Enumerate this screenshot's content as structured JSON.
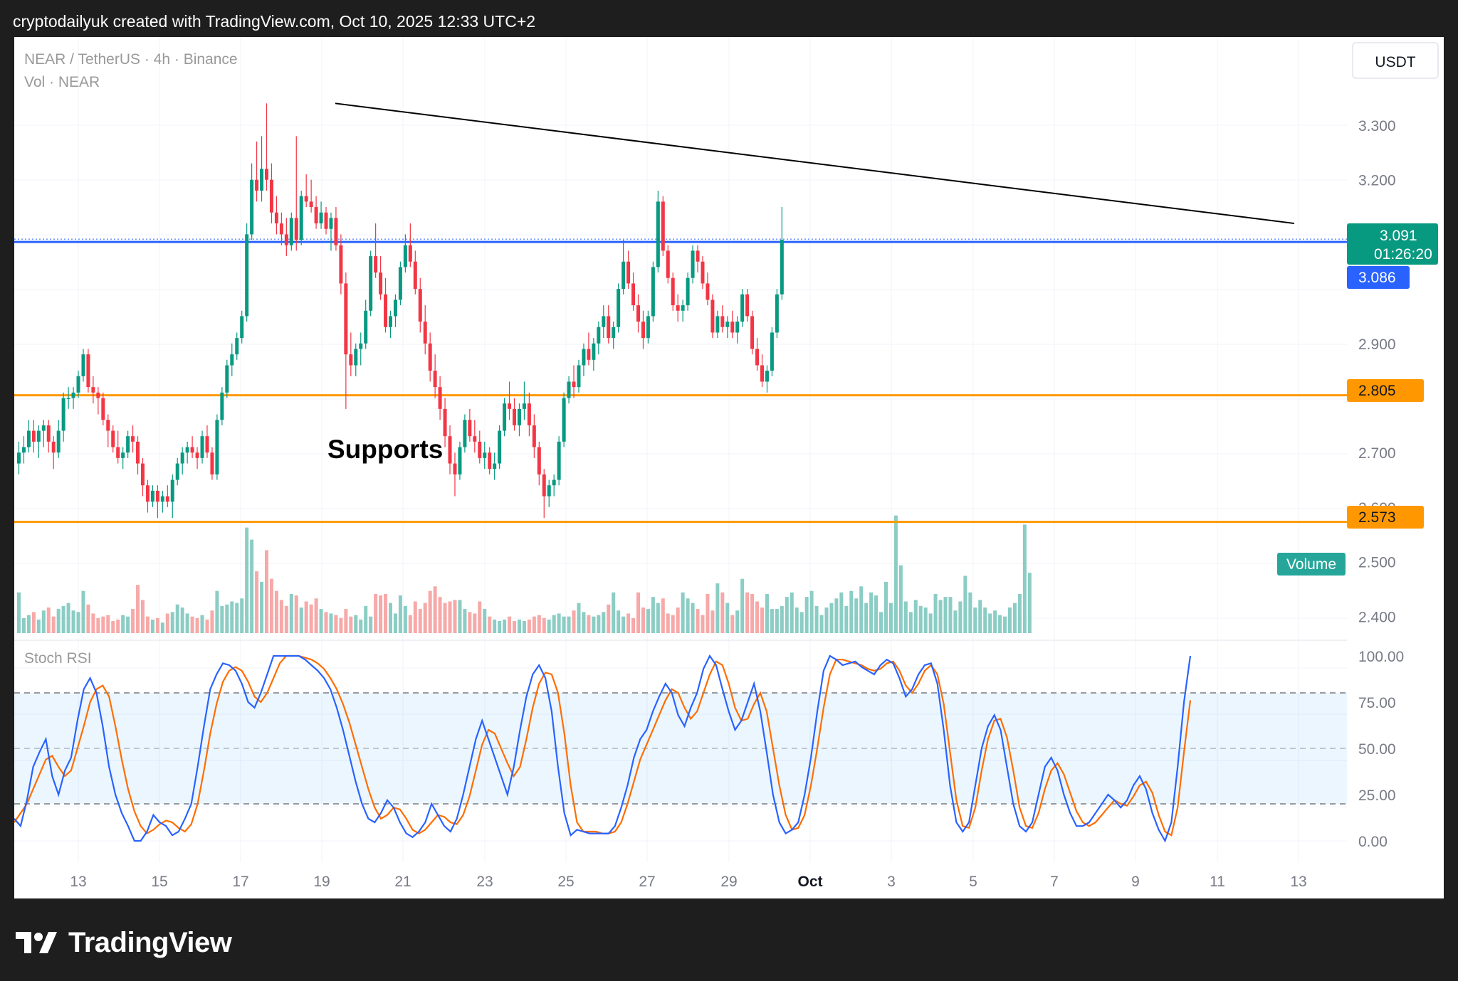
{
  "header": {
    "attribution": "cryptodailyuk created with TradingView.com, Oct 10, 2025 12:33 UTC+2"
  },
  "footer": {
    "brand": "TradingView"
  },
  "chart_data": {
    "type": "candlestick",
    "title": "NEAR / TetherUS · 4h · Binance",
    "volume_legend": "Vol · NEAR",
    "currency": "USDT",
    "annotation": "Supports",
    "price_axis": {
      "ticks": [
        "3.300",
        "3.200",
        "2.900",
        "2.700",
        "2.600",
        "2.500",
        "2.400"
      ],
      "range": [
        2.31,
        3.47
      ]
    },
    "x_ticks": [
      "13",
      "15",
      "17",
      "19",
      "21",
      "23",
      "25",
      "27",
      "29",
      "Oct",
      "3",
      "5",
      "7",
      "9",
      "11",
      "13"
    ],
    "price_labels": {
      "last": {
        "value": "3.091",
        "countdown": "01:26:20",
        "color": "#089981"
      },
      "line": {
        "value": "3.086",
        "color": "#2962ff"
      },
      "support_1": {
        "value": "2.805",
        "color": "#ff9800"
      },
      "support_2": {
        "value": "2.573",
        "color": "#ff9800"
      },
      "volume_tag": {
        "value": "Volume",
        "color": "#26a69a"
      }
    },
    "levels": {
      "resistance_blue": 3.086,
      "support_1": 2.805,
      "support_2": 2.573
    },
    "trendline": {
      "from": {
        "x": 19.4,
        "y": 3.34
      },
      "to": {
        "x": 12.8,
        "y": 3.12
      }
    },
    "candles_ohlc": [
      [
        2.68,
        2.72,
        2.66,
        2.7
      ],
      [
        2.7,
        2.73,
        2.68,
        2.71
      ],
      [
        2.71,
        2.76,
        2.7,
        2.74
      ],
      [
        2.74,
        2.76,
        2.7,
        2.72
      ],
      [
        2.72,
        2.75,
        2.69,
        2.74
      ],
      [
        2.74,
        2.76,
        2.71,
        2.75
      ],
      [
        2.75,
        2.76,
        2.7,
        2.72
      ],
      [
        2.72,
        2.73,
        2.67,
        2.7
      ],
      [
        2.7,
        2.76,
        2.69,
        2.74
      ],
      [
        2.74,
        2.81,
        2.72,
        2.8
      ],
      [
        2.8,
        2.82,
        2.78,
        2.8
      ],
      [
        2.8,
        2.82,
        2.78,
        2.81
      ],
      [
        2.81,
        2.85,
        2.8,
        2.84
      ],
      [
        2.84,
        2.89,
        2.83,
        2.88
      ],
      [
        2.88,
        2.89,
        2.81,
        2.82
      ],
      [
        2.82,
        2.84,
        2.79,
        2.81
      ],
      [
        2.81,
        2.82,
        2.77,
        2.8
      ],
      [
        2.8,
        2.81,
        2.75,
        2.76
      ],
      [
        2.76,
        2.77,
        2.71,
        2.74
      ],
      [
        2.74,
        2.75,
        2.7,
        2.71
      ],
      [
        2.71,
        2.74,
        2.68,
        2.69
      ],
      [
        2.69,
        2.71,
        2.67,
        2.7
      ],
      [
        2.7,
        2.74,
        2.69,
        2.73
      ],
      [
        2.73,
        2.75,
        2.7,
        2.72
      ],
      [
        2.72,
        2.73,
        2.66,
        2.68
      ],
      [
        2.68,
        2.69,
        2.62,
        2.64
      ],
      [
        2.64,
        2.65,
        2.59,
        2.61
      ],
      [
        2.61,
        2.64,
        2.6,
        2.63
      ],
      [
        2.63,
        2.64,
        2.58,
        2.61
      ],
      [
        2.61,
        2.63,
        2.59,
        2.62
      ],
      [
        2.62,
        2.64,
        2.6,
        2.61
      ],
      [
        2.61,
        2.66,
        2.58,
        2.65
      ],
      [
        2.65,
        2.69,
        2.64,
        2.68
      ],
      [
        2.68,
        2.71,
        2.66,
        2.7
      ],
      [
        2.7,
        2.72,
        2.68,
        2.71
      ],
      [
        2.71,
        2.73,
        2.69,
        2.7
      ],
      [
        2.7,
        2.71,
        2.67,
        2.69
      ],
      [
        2.69,
        2.74,
        2.68,
        2.73
      ],
      [
        2.73,
        2.75,
        2.69,
        2.7
      ],
      [
        2.7,
        2.71,
        2.65,
        2.66
      ],
      [
        2.66,
        2.77,
        2.65,
        2.76
      ],
      [
        2.76,
        2.82,
        2.75,
        2.81
      ],
      [
        2.81,
        2.87,
        2.8,
        2.86
      ],
      [
        2.86,
        2.9,
        2.84,
        2.88
      ],
      [
        2.88,
        2.92,
        2.87,
        2.91
      ],
      [
        2.91,
        2.96,
        2.9,
        2.95
      ],
      [
        2.95,
        3.12,
        2.94,
        3.1
      ],
      [
        3.1,
        3.23,
        3.09,
        3.2
      ],
      [
        3.2,
        3.27,
        3.16,
        3.18
      ],
      [
        3.18,
        3.28,
        3.16,
        3.22
      ],
      [
        3.22,
        3.34,
        3.18,
        3.2
      ],
      [
        3.2,
        3.23,
        3.12,
        3.14
      ],
      [
        3.14,
        3.17,
        3.1,
        3.12
      ],
      [
        3.12,
        3.14,
        3.08,
        3.1
      ],
      [
        3.1,
        3.13,
        3.06,
        3.08
      ],
      [
        3.08,
        3.14,
        3.07,
        3.13
      ],
      [
        3.13,
        3.28,
        3.07,
        3.09
      ],
      [
        3.09,
        3.18,
        3.08,
        3.17
      ],
      [
        3.17,
        3.21,
        3.15,
        3.16
      ],
      [
        3.16,
        3.2,
        3.14,
        3.15
      ],
      [
        3.15,
        3.17,
        3.11,
        3.12
      ],
      [
        3.12,
        3.16,
        3.11,
        3.14
      ],
      [
        3.14,
        3.15,
        3.1,
        3.11
      ],
      [
        3.11,
        3.14,
        3.07,
        3.13
      ],
      [
        3.13,
        3.15,
        3.07,
        3.08
      ],
      [
        3.08,
        3.1,
        2.99,
        3.01
      ],
      [
        3.01,
        3.03,
        2.78,
        2.88
      ],
      [
        2.88,
        2.92,
        2.84,
        2.86
      ],
      [
        2.86,
        2.9,
        2.84,
        2.89
      ],
      [
        2.89,
        2.92,
        2.86,
        2.9
      ],
      [
        2.9,
        2.98,
        2.89,
        2.96
      ],
      [
        2.96,
        3.07,
        2.95,
        3.06
      ],
      [
        3.06,
        3.12,
        3.02,
        3.03
      ],
      [
        3.03,
        3.06,
        2.98,
        2.99
      ],
      [
        2.99,
        3.02,
        2.92,
        2.93
      ],
      [
        2.93,
        2.96,
        2.91,
        2.95
      ],
      [
        2.95,
        2.99,
        2.93,
        2.98
      ],
      [
        2.98,
        3.05,
        2.97,
        3.04
      ],
      [
        3.04,
        3.1,
        3.03,
        3.08
      ],
      [
        3.08,
        3.12,
        3.04,
        3.05
      ],
      [
        3.05,
        3.07,
        2.99,
        3.0
      ],
      [
        3.0,
        3.02,
        2.92,
        2.94
      ],
      [
        2.94,
        2.97,
        2.88,
        2.9
      ],
      [
        2.9,
        2.92,
        2.83,
        2.85
      ],
      [
        2.85,
        2.88,
        2.8,
        2.82
      ],
      [
        2.82,
        2.84,
        2.76,
        2.78
      ],
      [
        2.78,
        2.8,
        2.71,
        2.73
      ],
      [
        2.73,
        2.75,
        2.66,
        2.68
      ],
      [
        2.68,
        2.7,
        2.62,
        2.66
      ],
      [
        2.66,
        2.72,
        2.65,
        2.71
      ],
      [
        2.71,
        2.77,
        2.7,
        2.76
      ],
      [
        2.76,
        2.78,
        2.72,
        2.73
      ],
      [
        2.73,
        2.76,
        2.7,
        2.72
      ],
      [
        2.72,
        2.74,
        2.68,
        2.69
      ],
      [
        2.69,
        2.72,
        2.67,
        2.7
      ],
      [
        2.7,
        2.71,
        2.66,
        2.67
      ],
      [
        2.67,
        2.7,
        2.65,
        2.68
      ],
      [
        2.68,
        2.75,
        2.67,
        2.74
      ],
      [
        2.74,
        2.8,
        2.73,
        2.79
      ],
      [
        2.79,
        2.83,
        2.76,
        2.78
      ],
      [
        2.78,
        2.8,
        2.74,
        2.75
      ],
      [
        2.75,
        2.79,
        2.73,
        2.78
      ],
      [
        2.78,
        2.83,
        2.76,
        2.79
      ],
      [
        2.79,
        2.81,
        2.73,
        2.75
      ],
      [
        2.75,
        2.77,
        2.69,
        2.71
      ],
      [
        2.71,
        2.72,
        2.64,
        2.66
      ],
      [
        2.66,
        2.67,
        2.58,
        2.62
      ],
      [
        2.62,
        2.65,
        2.6,
        2.64
      ],
      [
        2.64,
        2.66,
        2.62,
        2.65
      ],
      [
        2.65,
        2.73,
        2.64,
        2.72
      ],
      [
        2.72,
        2.81,
        2.71,
        2.8
      ],
      [
        2.8,
        2.84,
        2.79,
        2.83
      ],
      [
        2.83,
        2.86,
        2.8,
        2.82
      ],
      [
        2.82,
        2.87,
        2.81,
        2.86
      ],
      [
        2.86,
        2.9,
        2.84,
        2.89
      ],
      [
        2.89,
        2.92,
        2.86,
        2.87
      ],
      [
        2.87,
        2.91,
        2.85,
        2.9
      ],
      [
        2.9,
        2.94,
        2.88,
        2.93
      ],
      [
        2.93,
        2.97,
        2.91,
        2.95
      ],
      [
        2.95,
        2.97,
        2.9,
        2.91
      ],
      [
        2.91,
        2.94,
        2.89,
        2.93
      ],
      [
        2.93,
        3.01,
        2.92,
        3.0
      ],
      [
        3.0,
        3.09,
        2.99,
        3.05
      ],
      [
        3.05,
        3.07,
        3.0,
        3.01
      ],
      [
        3.01,
        3.03,
        2.96,
        2.97
      ],
      [
        2.97,
        2.99,
        2.92,
        2.94
      ],
      [
        2.94,
        2.96,
        2.89,
        2.91
      ],
      [
        2.91,
        2.96,
        2.9,
        2.95
      ],
      [
        2.95,
        3.05,
        2.94,
        3.04
      ],
      [
        3.04,
        3.18,
        3.03,
        3.16
      ],
      [
        3.16,
        3.17,
        3.06,
        3.07
      ],
      [
        3.07,
        3.08,
        3.01,
        3.02
      ],
      [
        3.02,
        3.03,
        2.96,
        2.97
      ],
      [
        2.97,
        2.99,
        2.94,
        2.96
      ],
      [
        2.96,
        2.98,
        2.94,
        2.97
      ],
      [
        2.97,
        3.03,
        2.96,
        3.02
      ],
      [
        3.02,
        3.08,
        3.01,
        3.07
      ],
      [
        3.07,
        3.08,
        3.03,
        3.05
      ],
      [
        3.05,
        3.06,
        3.0,
        3.01
      ],
      [
        3.01,
        3.03,
        2.97,
        2.98
      ],
      [
        2.98,
        2.99,
        2.91,
        2.92
      ],
      [
        2.92,
        2.96,
        2.91,
        2.95
      ],
      [
        2.95,
        2.97,
        2.92,
        2.93
      ],
      [
        2.93,
        2.95,
        2.91,
        2.94
      ],
      [
        2.94,
        2.96,
        2.91,
        2.92
      ],
      [
        2.92,
        2.95,
        2.9,
        2.94
      ],
      [
        2.94,
        3.0,
        2.93,
        2.99
      ],
      [
        2.99,
        3.0,
        2.94,
        2.95
      ],
      [
        2.95,
        2.96,
        2.88,
        2.89
      ],
      [
        2.89,
        2.91,
        2.85,
        2.86
      ],
      [
        2.86,
        2.88,
        2.82,
        2.83
      ],
      [
        2.83,
        2.86,
        2.81,
        2.85
      ],
      [
        2.85,
        2.93,
        2.84,
        2.92
      ],
      [
        2.92,
        3.0,
        2.91,
        2.99
      ],
      [
        2.99,
        3.15,
        2.98,
        3.09
      ]
    ],
    "volume_levels": [
      0.27,
      0.1,
      0.12,
      0.14,
      0.09,
      0.15,
      0.17,
      0.11,
      0.16,
      0.18,
      0.2,
      0.15,
      0.14,
      0.28,
      0.19,
      0.13,
      0.1,
      0.11,
      0.12,
      0.08,
      0.09,
      0.12,
      0.11,
      0.16,
      0.32,
      0.22,
      0.11,
      0.09,
      0.1,
      0.07,
      0.13,
      0.14,
      0.19,
      0.17,
      0.13,
      0.11,
      0.1,
      0.12,
      0.09,
      0.15,
      0.28,
      0.18,
      0.19,
      0.21,
      0.2,
      0.23,
      0.7,
      0.62,
      0.41,
      0.34,
      0.55,
      0.36,
      0.28,
      0.22,
      0.18,
      0.26,
      0.25,
      0.17,
      0.21,
      0.19,
      0.23,
      0.16,
      0.14,
      0.13,
      0.12,
      0.1,
      0.16,
      0.11,
      0.12,
      0.09,
      0.18,
      0.11,
      0.26,
      0.25,
      0.26,
      0.2,
      0.13,
      0.25,
      0.18,
      0.12,
      0.21,
      0.16,
      0.2,
      0.28,
      0.31,
      0.24,
      0.2,
      0.21,
      0.22,
      0.22,
      0.16,
      0.14,
      0.13,
      0.21,
      0.16,
      0.11,
      0.09,
      0.08,
      0.09,
      0.11,
      0.08,
      0.09,
      0.08,
      0.09,
      0.11,
      0.12,
      0.1,
      0.09,
      0.12,
      0.13,
      0.11,
      0.11,
      0.15,
      0.2,
      0.14,
      0.12,
      0.11,
      0.12,
      0.14,
      0.19,
      0.27,
      0.15,
      0.11,
      0.13,
      0.1,
      0.27,
      0.17,
      0.16,
      0.24,
      0.2,
      0.23,
      0.13,
      0.12,
      0.17,
      0.27,
      0.23,
      0.2,
      0.16,
      0.12,
      0.26,
      0.15,
      0.33,
      0.27,
      0.2,
      0.12,
      0.15,
      0.36,
      0.27,
      0.26,
      0.21,
      0.17,
      0.26,
      0.16,
      0.16,
      0.18,
      0.24,
      0.27,
      0.17,
      0.14,
      0.24,
      0.28,
      0.18,
      0.12,
      0.17,
      0.2,
      0.23,
      0.27,
      0.18,
      0.28,
      0.23,
      0.31,
      0.2,
      0.27,
      0.25,
      0.14,
      0.34,
      0.2,
      0.78,
      0.45,
      0.21,
      0.14,
      0.22,
      0.18,
      0.17,
      0.13,
      0.26,
      0.22,
      0.24,
      0.24,
      0.15,
      0.21,
      0.38,
      0.27,
      0.17,
      0.22,
      0.17,
      0.13,
      0.15,
      0.12,
      0.11,
      0.17,
      0.2,
      0.26,
      0.72,
      0.4
    ],
    "stoch_rsi": {
      "label": "Stoch RSI",
      "ticks": [
        "100.00",
        "75.00",
        "50.00",
        "25.00",
        "0.00"
      ],
      "bands": {
        "upper": 80,
        "middle": 50,
        "lower": 20
      },
      "k_color": "#2962ff",
      "d_color": "#ff6d00",
      "k": [
        12,
        8,
        22,
        40,
        48,
        55,
        35,
        25,
        38,
        45,
        65,
        82,
        88,
        80,
        62,
        40,
        25,
        15,
        8,
        0,
        0,
        5,
        14,
        10,
        8,
        3,
        5,
        12,
        20,
        40,
        62,
        82,
        90,
        96,
        95,
        92,
        85,
        75,
        72,
        80,
        90,
        100,
        100,
        100,
        100,
        100,
        98,
        95,
        92,
        88,
        82,
        72,
        60,
        46,
        32,
        20,
        12,
        10,
        15,
        22,
        18,
        10,
        4,
        2,
        5,
        10,
        20,
        14,
        8,
        5,
        12,
        25,
        40,
        55,
        65,
        55,
        45,
        35,
        25,
        40,
        60,
        78,
        90,
        95,
        88,
        70,
        40,
        15,
        3,
        6,
        5,
        4,
        4,
        4,
        4,
        8,
        18,
        30,
        45,
        55,
        60,
        70,
        78,
        85,
        80,
        68,
        62,
        72,
        80,
        93,
        100,
        95,
        82,
        70,
        60,
        65,
        75,
        85,
        70,
        48,
        25,
        10,
        4,
        6,
        10,
        25,
        45,
        70,
        92,
        100,
        98,
        95,
        96,
        97,
        94,
        92,
        90,
        95,
        98,
        96,
        88,
        78,
        82,
        90,
        95,
        96,
        85,
        60,
        30,
        10,
        5,
        10,
        30,
        50,
        62,
        68,
        60,
        40,
        20,
        8,
        5,
        10,
        25,
        40,
        45,
        38,
        25,
        15,
        8,
        8,
        10,
        15,
        20,
        25,
        22,
        18,
        22,
        30,
        35,
        28,
        15,
        6,
        0,
        10,
        40,
        75,
        100
      ],
      "d": [
        10,
        15,
        20,
        28,
        36,
        44,
        46,
        40,
        35,
        38,
        50,
        62,
        75,
        82,
        84,
        78,
        62,
        44,
        28,
        16,
        8,
        4,
        6,
        9,
        11,
        10,
        7,
        5,
        9,
        20,
        38,
        58,
        74,
        86,
        92,
        94,
        92,
        86,
        78,
        75,
        80,
        88,
        96,
        100,
        100,
        100,
        99,
        98,
        96,
        93,
        88,
        82,
        74,
        64,
        52,
        40,
        28,
        18,
        12,
        14,
        18,
        17,
        12,
        6,
        4,
        6,
        10,
        14,
        13,
        10,
        9,
        14,
        24,
        38,
        52,
        60,
        58,
        50,
        42,
        35,
        40,
        55,
        72,
        85,
        91,
        90,
        80,
        58,
        30,
        10,
        5,
        5,
        5,
        4,
        4,
        5,
        10,
        20,
        32,
        44,
        52,
        60,
        68,
        76,
        82,
        80,
        72,
        66,
        70,
        80,
        90,
        97,
        95,
        85,
        72,
        65,
        66,
        74,
        80,
        70,
        50,
        30,
        14,
        6,
        7,
        14,
        30,
        50,
        72,
        90,
        98,
        98,
        97,
        96,
        95,
        93,
        92,
        93,
        96,
        97,
        92,
        84,
        80,
        85,
        92,
        95,
        90,
        74,
        48,
        22,
        8,
        7,
        18,
        38,
        55,
        65,
        66,
        56,
        38,
        18,
        8,
        7,
        15,
        28,
        38,
        42,
        36,
        26,
        16,
        10,
        8,
        10,
        14,
        18,
        22,
        20,
        19,
        24,
        30,
        32,
        26,
        14,
        5,
        3,
        18,
        48,
        76
      ]
    }
  }
}
